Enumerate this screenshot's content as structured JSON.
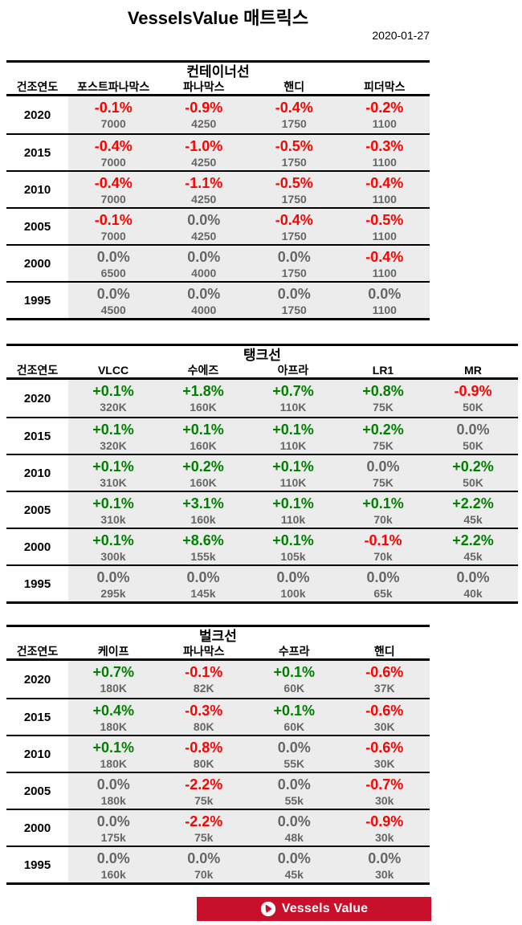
{
  "page": {
    "title": "VesselsValue 매트릭스",
    "date": "2020-01-27"
  },
  "colors": {
    "positive": "#008000",
    "negative": "#FF0000",
    "neutral": "#666666",
    "cell_background": "#ECECEC",
    "banner_red": "#C9102A"
  },
  "footer": {
    "logo_icon": "vesselsvalue-sail-icon",
    "logo_text": "Vessels Value"
  },
  "chart_data": [
    {
      "type": "table",
      "title": "컨테이너선",
      "year_header": "건조연도",
      "columns": [
        "포스트파나막스",
        "파나막스",
        "핸디",
        "피더막스"
      ],
      "rows": [
        {
          "year": "2020",
          "cells": [
            {
              "pct": "-0.1%",
              "val": "7000"
            },
            {
              "pct": "-0.9%",
              "val": "4250"
            },
            {
              "pct": "-0.4%",
              "val": "1750"
            },
            {
              "pct": "-0.2%",
              "val": "1100"
            }
          ]
        },
        {
          "year": "2015",
          "cells": [
            {
              "pct": "-0.4%",
              "val": "7000"
            },
            {
              "pct": "-1.0%",
              "val": "4250"
            },
            {
              "pct": "-0.5%",
              "val": "1750"
            },
            {
              "pct": "-0.3%",
              "val": "1100"
            }
          ]
        },
        {
          "year": "2010",
          "cells": [
            {
              "pct": "-0.4%",
              "val": "7000"
            },
            {
              "pct": "-1.1%",
              "val": "4250"
            },
            {
              "pct": "-0.5%",
              "val": "1750"
            },
            {
              "pct": "-0.4%",
              "val": "1100"
            }
          ]
        },
        {
          "year": "2005",
          "cells": [
            {
              "pct": "-0.1%",
              "val": "7000"
            },
            {
              "pct": "0.0%",
              "val": "4250"
            },
            {
              "pct": "-0.4%",
              "val": "1750"
            },
            {
              "pct": "-0.5%",
              "val": "1100"
            }
          ]
        },
        {
          "year": "2000",
          "cells": [
            {
              "pct": "0.0%",
              "val": "6500"
            },
            {
              "pct": "0.0%",
              "val": "4000"
            },
            {
              "pct": "0.0%",
              "val": "1750"
            },
            {
              "pct": "-0.4%",
              "val": "1100"
            }
          ]
        },
        {
          "year": "1995",
          "cells": [
            {
              "pct": "0.0%",
              "val": "4500"
            },
            {
              "pct": "0.0%",
              "val": "4000"
            },
            {
              "pct": "0.0%",
              "val": "1750"
            },
            {
              "pct": "0.0%",
              "val": "1100"
            }
          ]
        }
      ]
    },
    {
      "type": "table",
      "title": "탱크선",
      "year_header": "건조연도",
      "columns": [
        "VLCC",
        "수에즈",
        "아프라",
        "LR1",
        "MR"
      ],
      "rows": [
        {
          "year": "2020",
          "cells": [
            {
              "pct": "+0.1%",
              "val": "320K"
            },
            {
              "pct": "+1.8%",
              "val": "160K"
            },
            {
              "pct": "+0.7%",
              "val": "110K"
            },
            {
              "pct": "+0.8%",
              "val": "75K"
            },
            {
              "pct": "-0.9%",
              "val": "50K"
            }
          ]
        },
        {
          "year": "2015",
          "cells": [
            {
              "pct": "+0.1%",
              "val": "320K"
            },
            {
              "pct": "+0.1%",
              "val": "160K"
            },
            {
              "pct": "+0.1%",
              "val": "110K"
            },
            {
              "pct": "+0.2%",
              "val": "75K"
            },
            {
              "pct": "0.0%",
              "val": "50K"
            }
          ]
        },
        {
          "year": "2010",
          "cells": [
            {
              "pct": "+0.1%",
              "val": "310K"
            },
            {
              "pct": "+0.2%",
              "val": "160K"
            },
            {
              "pct": "+0.1%",
              "val": "110K"
            },
            {
              "pct": "0.0%",
              "val": "75K"
            },
            {
              "pct": "+0.2%",
              "val": "50K"
            }
          ]
        },
        {
          "year": "2005",
          "cells": [
            {
              "pct": "+0.1%",
              "val": "310k"
            },
            {
              "pct": "+3.1%",
              "val": "160k"
            },
            {
              "pct": "+0.1%",
              "val": "110k"
            },
            {
              "pct": "+0.1%",
              "val": "70k"
            },
            {
              "pct": "+2.2%",
              "val": "45k"
            }
          ]
        },
        {
          "year": "2000",
          "cells": [
            {
              "pct": "+0.1%",
              "val": "300k"
            },
            {
              "pct": "+8.6%",
              "val": "155k"
            },
            {
              "pct": "+0.1%",
              "val": "105k"
            },
            {
              "pct": "-0.1%",
              "val": "70k"
            },
            {
              "pct": "+2.2%",
              "val": "45k"
            }
          ]
        },
        {
          "year": "1995",
          "cells": [
            {
              "pct": "0.0%",
              "val": "295k"
            },
            {
              "pct": "0.0%",
              "val": "145k"
            },
            {
              "pct": "0.0%",
              "val": "100k"
            },
            {
              "pct": "0.0%",
              "val": "65k"
            },
            {
              "pct": "0.0%",
              "val": "40k"
            }
          ]
        }
      ]
    },
    {
      "type": "table",
      "title": "벌크선",
      "year_header": "건조연도",
      "columns": [
        "케이프",
        "파나막스",
        "수프라",
        "핸디"
      ],
      "rows": [
        {
          "year": "2020",
          "cells": [
            {
              "pct": "+0.7%",
              "val": "180K"
            },
            {
              "pct": "-0.1%",
              "val": "82K"
            },
            {
              "pct": "+0.1%",
              "val": "60K"
            },
            {
              "pct": "-0.6%",
              "val": "37K"
            }
          ]
        },
        {
          "year": "2015",
          "cells": [
            {
              "pct": "+0.4%",
              "val": "180K"
            },
            {
              "pct": "-0.3%",
              "val": "80K"
            },
            {
              "pct": "+0.1%",
              "val": "60K"
            },
            {
              "pct": "-0.6%",
              "val": "30K"
            }
          ]
        },
        {
          "year": "2010",
          "cells": [
            {
              "pct": "+0.1%",
              "val": "180K"
            },
            {
              "pct": "-0.8%",
              "val": "80K"
            },
            {
              "pct": "0.0%",
              "val": "55K"
            },
            {
              "pct": "-0.6%",
              "val": "30K"
            }
          ]
        },
        {
          "year": "2005",
          "cells": [
            {
              "pct": "0.0%",
              "val": "180k"
            },
            {
              "pct": "-2.2%",
              "val": "75k"
            },
            {
              "pct": "0.0%",
              "val": "55k"
            },
            {
              "pct": "-0.7%",
              "val": "30k"
            }
          ]
        },
        {
          "year": "2000",
          "cells": [
            {
              "pct": "0.0%",
              "val": "175k"
            },
            {
              "pct": "-2.2%",
              "val": "75k"
            },
            {
              "pct": "0.0%",
              "val": "48k"
            },
            {
              "pct": "-0.9%",
              "val": "30k"
            }
          ]
        },
        {
          "year": "1995",
          "cells": [
            {
              "pct": "0.0%",
              "val": "160k"
            },
            {
              "pct": "0.0%",
              "val": "70k"
            },
            {
              "pct": "0.0%",
              "val": "45k"
            },
            {
              "pct": "0.0%",
              "val": "30k"
            }
          ]
        }
      ]
    }
  ]
}
